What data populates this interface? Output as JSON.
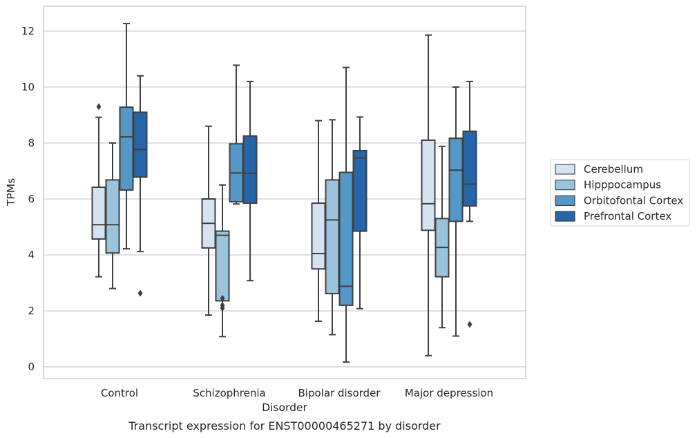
{
  "chart_data": {
    "type": "box",
    "title": "",
    "caption": "Transcript expression for ENST00000465271 by disorder",
    "xlabel": "Disorder",
    "ylabel": "TPMs",
    "ylim": [
      -0.4,
      12.9
    ],
    "yticks": [
      0,
      2,
      4,
      6,
      8,
      10,
      12
    ],
    "grid": "horizontal",
    "legend_position": "right",
    "categories": [
      "Control",
      "Schizophrenia",
      "Bipolar disorder",
      "Major depression"
    ],
    "series": [
      {
        "name": "Cerebellum",
        "color": "#d4e2f1",
        "boxes": [
          {
            "whislo": 3.22,
            "q1": 4.57,
            "med": 5.08,
            "q3": 6.42,
            "whishi": 8.92,
            "fliers": [
              9.3
            ]
          },
          {
            "whislo": 1.85,
            "q1": 4.25,
            "med": 5.13,
            "q3": 6.0,
            "whishi": 8.6,
            "fliers": []
          },
          {
            "whislo": 1.63,
            "q1": 3.5,
            "med": 4.05,
            "q3": 5.85,
            "whishi": 8.8,
            "fliers": []
          },
          {
            "whislo": 0.4,
            "q1": 4.88,
            "med": 5.83,
            "q3": 8.1,
            "whishi": 11.86,
            "fliers": []
          }
        ]
      },
      {
        "name": "Hipppocampus",
        "color": "#9ac3de",
        "boxes": [
          {
            "whislo": 2.8,
            "q1": 4.07,
            "med": 5.08,
            "q3": 6.68,
            "whishi": 8.0,
            "fliers": []
          },
          {
            "whislo": 1.08,
            "q1": 2.36,
            "med": 4.7,
            "q3": 4.85,
            "whishi": 6.5,
            "fliers": [
              2.1,
              2.2,
              2.45
            ]
          },
          {
            "whislo": 1.15,
            "q1": 2.62,
            "med": 5.25,
            "q3": 6.68,
            "whishi": 8.83,
            "fliers": []
          },
          {
            "whislo": 1.4,
            "q1": 3.22,
            "med": 4.27,
            "q3": 5.3,
            "whishi": 7.88,
            "fliers": []
          }
        ]
      },
      {
        "name": "Orbitofontal Cortex",
        "color": "#5597c6",
        "boxes": [
          {
            "whislo": 4.22,
            "q1": 6.32,
            "med": 8.22,
            "q3": 9.28,
            "whishi": 12.27,
            "fliers": []
          },
          {
            "whislo": 5.82,
            "q1": 5.9,
            "med": 6.93,
            "q3": 7.97,
            "whishi": 10.78,
            "fliers": []
          },
          {
            "whislo": 0.17,
            "q1": 2.2,
            "med": 2.88,
            "q3": 6.95,
            "whishi": 10.7,
            "fliers": []
          },
          {
            "whislo": 1.1,
            "q1": 5.2,
            "med": 7.03,
            "q3": 8.17,
            "whishi": 10.0,
            "fliers": []
          }
        ]
      },
      {
        "name": "Prefrontal Cortex",
        "color": "#2565a8",
        "boxes": [
          {
            "whislo": 4.12,
            "q1": 6.78,
            "med": 7.77,
            "q3": 9.1,
            "whishi": 10.4,
            "fliers": [
              2.63
            ]
          },
          {
            "whislo": 3.08,
            "q1": 5.85,
            "med": 6.92,
            "q3": 8.25,
            "whishi": 10.2,
            "fliers": []
          },
          {
            "whislo": 2.08,
            "q1": 4.85,
            "med": 7.47,
            "q3": 7.73,
            "whishi": 8.93,
            "fliers": []
          },
          {
            "whislo": 5.2,
            "q1": 5.75,
            "med": 6.53,
            "q3": 8.42,
            "whishi": 10.2,
            "fliers": [
              1.52
            ]
          }
        ]
      }
    ]
  }
}
